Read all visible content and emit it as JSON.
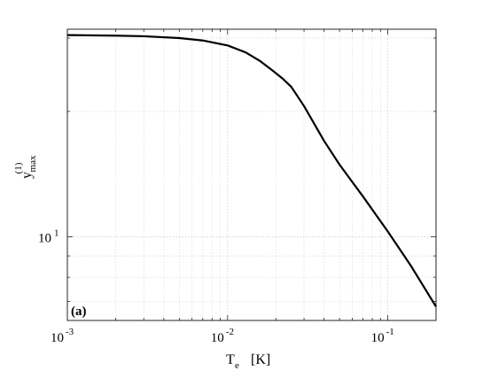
{
  "chart_data": {
    "type": "line",
    "xlabel_main": "T",
    "xlabel_sub": "e",
    "xlabel_unit": "[K]",
    "ylabel_main": "y",
    "ylabel_sub": "max",
    "ylabel_sup": "(1)",
    "panel_label": "(a)",
    "x_scale": "log",
    "y_scale": "log",
    "xlim": [
      0.001,
      0.2
    ],
    "ylim": [
      6.3,
      31.5
    ],
    "grid": true,
    "x_ticks": [
      {
        "value": 0.001,
        "base": "10",
        "exp": "-3"
      },
      {
        "value": 0.01,
        "base": "10",
        "exp": "-2"
      },
      {
        "value": 0.1,
        "base": "10",
        "exp": "-1"
      }
    ],
    "y_ticks": [
      {
        "value": 10,
        "base": "10",
        "exp": "1"
      }
    ],
    "series": [
      {
        "x": [
          0.001,
          0.002,
          0.003,
          0.005,
          0.007,
          0.01,
          0.013,
          0.016,
          0.019,
          0.022,
          0.025,
          0.03,
          0.04,
          0.05,
          0.07,
          0.1,
          0.14,
          0.2
        ],
        "y": [
          30.5,
          30.4,
          30.3,
          30.0,
          29.6,
          28.8,
          27.7,
          26.4,
          25.1,
          24.0,
          22.9,
          20.6,
          17.0,
          14.9,
          12.5,
          10.3,
          8.5,
          6.8
        ],
        "color": "#000000"
      }
    ]
  }
}
